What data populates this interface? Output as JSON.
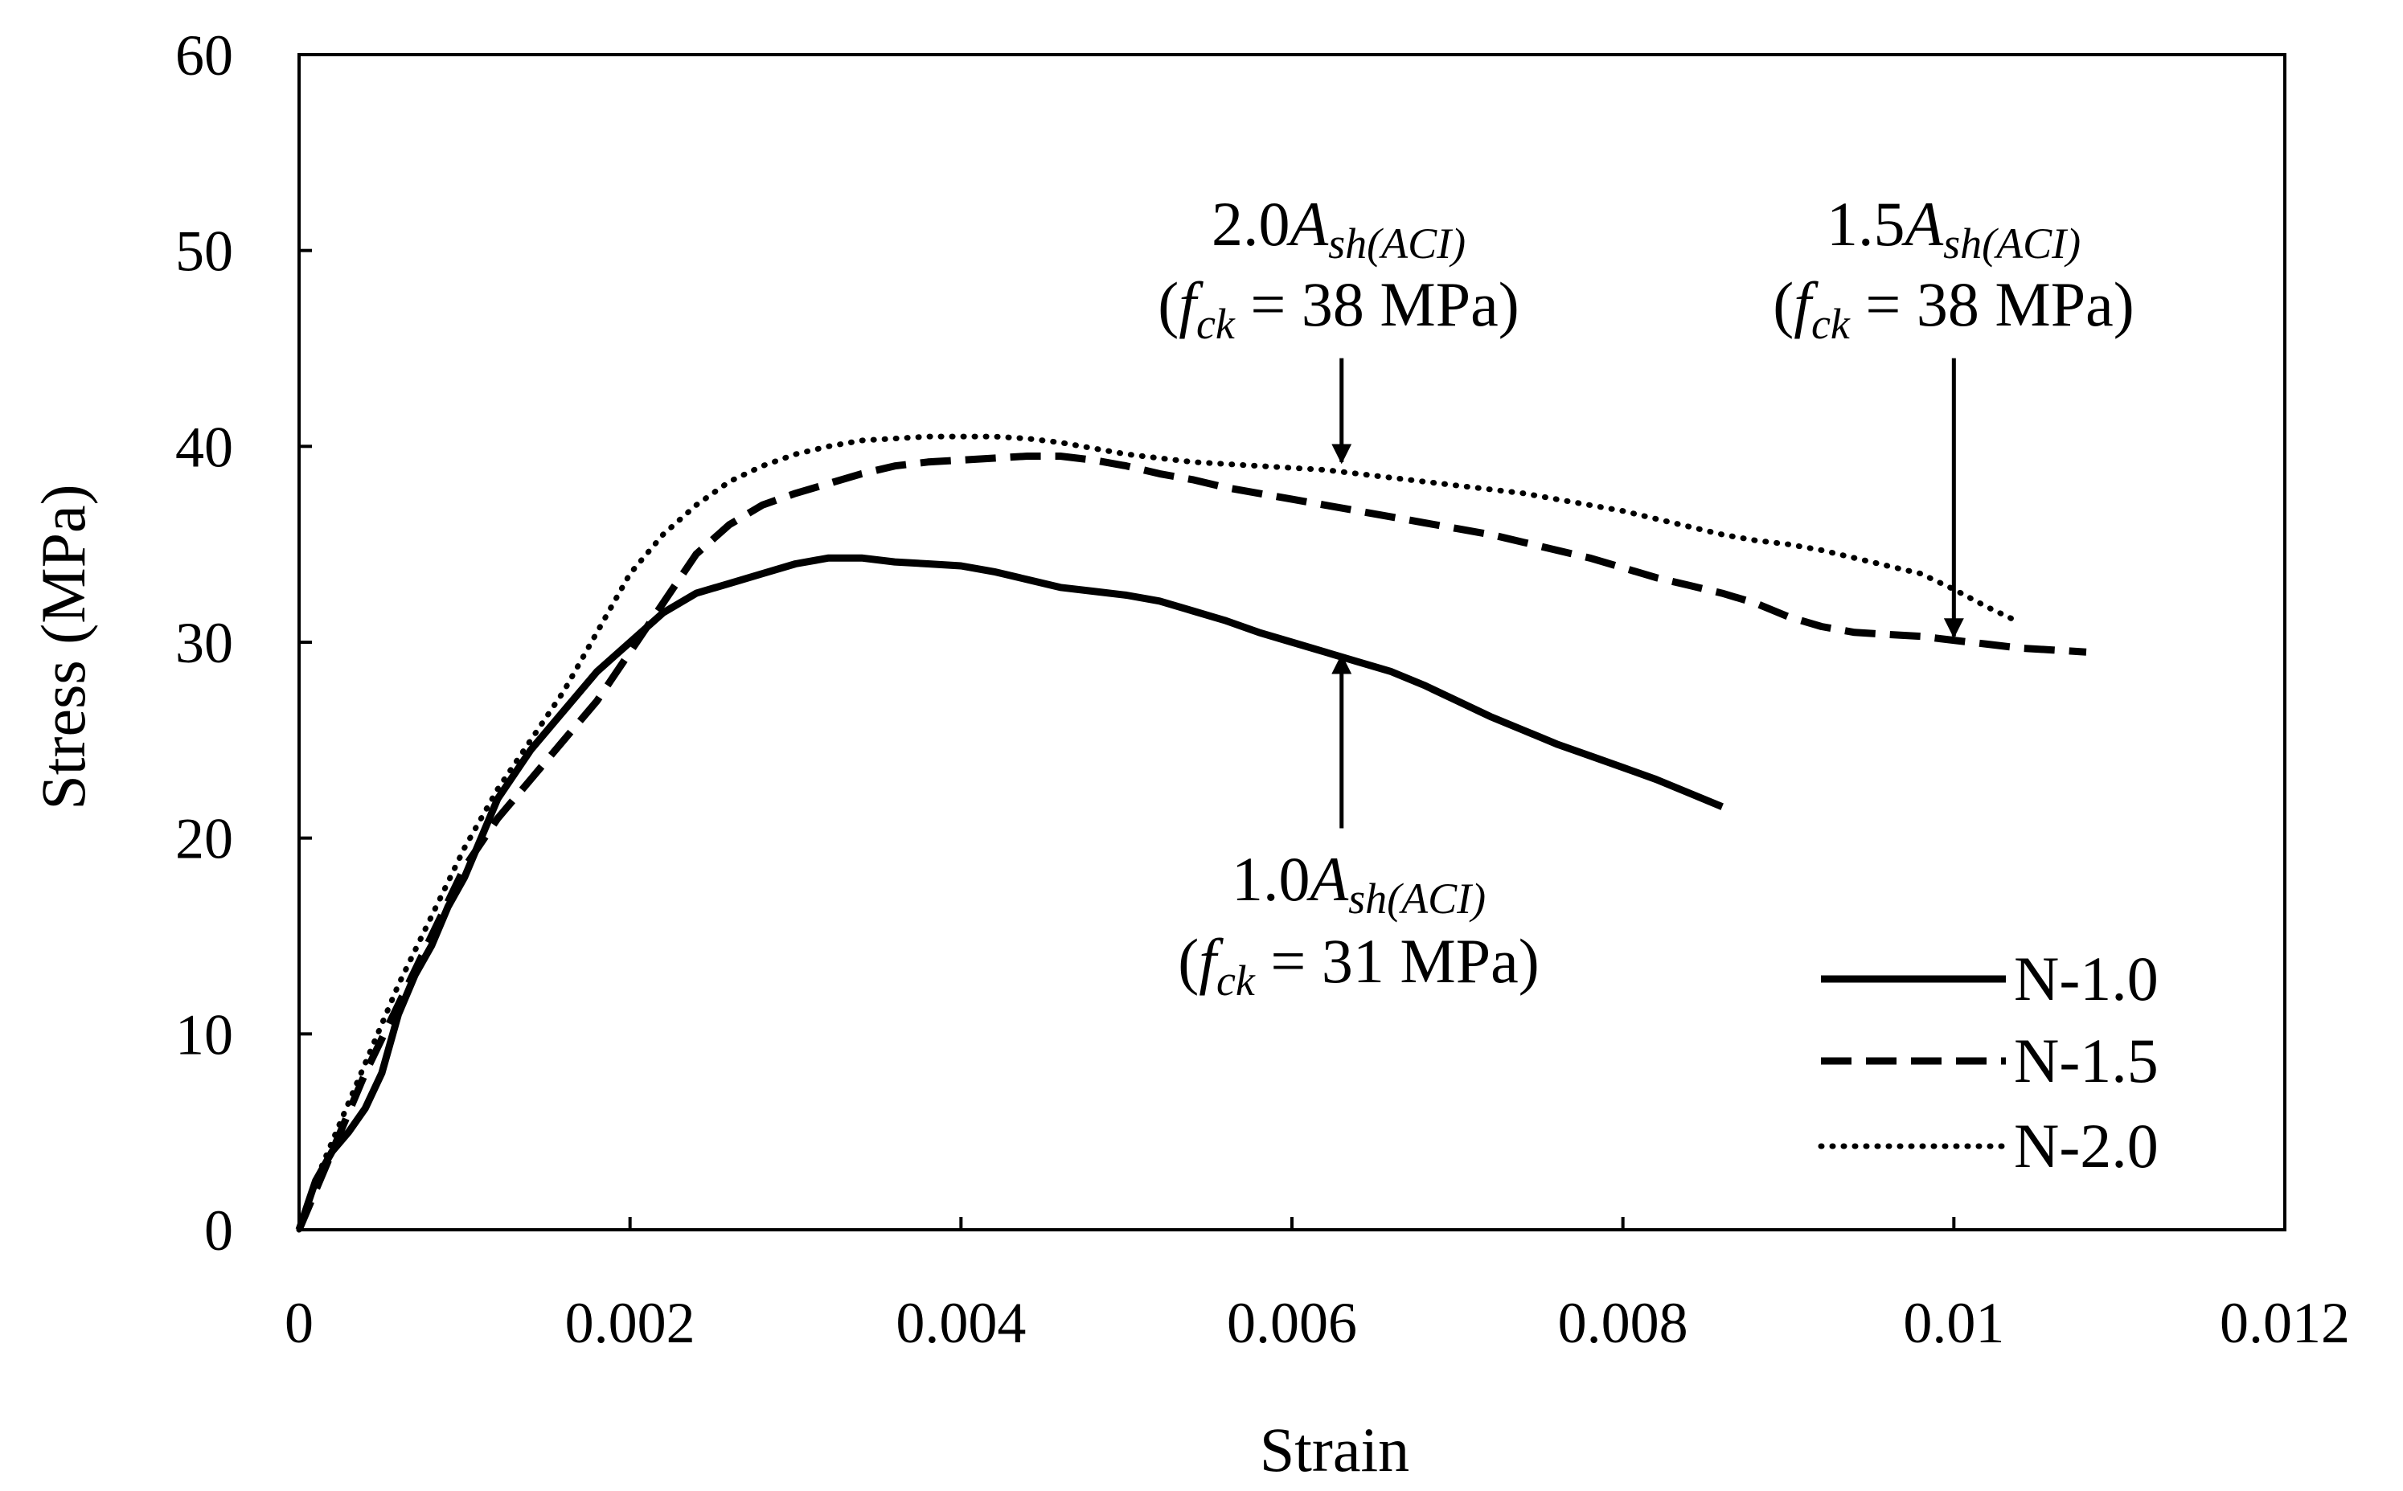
{
  "chart_data": {
    "type": "line",
    "title": "",
    "xlabel": "Strain",
    "ylabel": "Stress (MPa)",
    "xlim": [
      0,
      0.012
    ],
    "ylim": [
      0,
      60
    ],
    "x_ticks": [
      "0",
      "0.002",
      "0.004",
      "0.006",
      "0.008",
      "0.01",
      "0.012"
    ],
    "y_ticks": [
      "0",
      "10",
      "20",
      "30",
      "40",
      "50",
      "60"
    ],
    "legend_position": "bottom-right",
    "grid": false,
    "series": [
      {
        "name": "N-1.0",
        "style": "solid",
        "points": [
          [
            0,
            0
          ],
          [
            0.0001,
            2.5
          ],
          [
            0.0002,
            4
          ],
          [
            0.0003,
            5
          ],
          [
            0.0004,
            6.2
          ],
          [
            0.0005,
            8
          ],
          [
            0.0006,
            11
          ],
          [
            0.0007,
            13
          ],
          [
            0.0008,
            14.5
          ],
          [
            0.0009,
            16.5
          ],
          [
            0.001,
            18
          ],
          [
            0.0011,
            20
          ],
          [
            0.0012,
            22
          ],
          [
            0.0014,
            24.5
          ],
          [
            0.0016,
            26.5
          ],
          [
            0.0018,
            28.5
          ],
          [
            0.002,
            30
          ],
          [
            0.0022,
            31.5
          ],
          [
            0.0024,
            32.5
          ],
          [
            0.0026,
            33
          ],
          [
            0.0028,
            33.5
          ],
          [
            0.003,
            34
          ],
          [
            0.0032,
            34.3
          ],
          [
            0.0034,
            34.3
          ],
          [
            0.0036,
            34.1
          ],
          [
            0.0038,
            34
          ],
          [
            0.004,
            33.9
          ],
          [
            0.0042,
            33.6
          ],
          [
            0.0044,
            33.2
          ],
          [
            0.0046,
            32.8
          ],
          [
            0.0048,
            32.6
          ],
          [
            0.005,
            32.4
          ],
          [
            0.0052,
            32.1
          ],
          [
            0.0054,
            31.6
          ],
          [
            0.0056,
            31.1
          ],
          [
            0.0058,
            30.5
          ],
          [
            0.006,
            30
          ],
          [
            0.0062,
            29.5
          ],
          [
            0.0064,
            29
          ],
          [
            0.0066,
            28.5
          ],
          [
            0.0068,
            27.8
          ],
          [
            0.007,
            27
          ],
          [
            0.0072,
            26.2
          ],
          [
            0.0074,
            25.5
          ],
          [
            0.0076,
            24.8
          ],
          [
            0.0078,
            24.2
          ],
          [
            0.008,
            23.6
          ],
          [
            0.0082,
            23
          ],
          [
            0.0084,
            22.3
          ],
          [
            0.0086,
            21.6
          ]
        ]
      },
      {
        "name": "N-1.5",
        "style": "dashed",
        "points": [
          [
            0,
            0
          ],
          [
            0.0001,
            2
          ],
          [
            0.0002,
            4
          ],
          [
            0.0003,
            6
          ],
          [
            0.0004,
            8
          ],
          [
            0.0006,
            11.5
          ],
          [
            0.0008,
            15
          ],
          [
            0.001,
            18.5
          ],
          [
            0.0012,
            21
          ],
          [
            0.0014,
            23
          ],
          [
            0.0016,
            25
          ],
          [
            0.0018,
            27
          ],
          [
            0.002,
            29.5
          ],
          [
            0.0022,
            32
          ],
          [
            0.0024,
            34.5
          ],
          [
            0.0026,
            36
          ],
          [
            0.0028,
            37
          ],
          [
            0.003,
            37.6
          ],
          [
            0.0032,
            38.1
          ],
          [
            0.0034,
            38.6
          ],
          [
            0.0036,
            39
          ],
          [
            0.0038,
            39.2
          ],
          [
            0.004,
            39.3
          ],
          [
            0.0042,
            39.4
          ],
          [
            0.0044,
            39.5
          ],
          [
            0.0046,
            39.5
          ],
          [
            0.0048,
            39.3
          ],
          [
            0.005,
            39
          ],
          [
            0.0052,
            38.6
          ],
          [
            0.0054,
            38.3
          ],
          [
            0.0056,
            37.9
          ],
          [
            0.0058,
            37.6
          ],
          [
            0.006,
            37.3
          ],
          [
            0.0062,
            37
          ],
          [
            0.0064,
            36.7
          ],
          [
            0.0066,
            36.4
          ],
          [
            0.0068,
            36.1
          ],
          [
            0.007,
            35.8
          ],
          [
            0.0072,
            35.5
          ],
          [
            0.0074,
            35.1
          ],
          [
            0.0076,
            34.7
          ],
          [
            0.0078,
            34.3
          ],
          [
            0.008,
            33.8
          ],
          [
            0.0082,
            33.3
          ],
          [
            0.0084,
            32.9
          ],
          [
            0.0086,
            32.5
          ],
          [
            0.0088,
            32
          ],
          [
            0.009,
            31.3
          ],
          [
            0.0092,
            30.8
          ],
          [
            0.0094,
            30.5
          ],
          [
            0.0096,
            30.4
          ],
          [
            0.0098,
            30.3
          ],
          [
            0.01,
            30.1
          ],
          [
            0.0102,
            29.9
          ],
          [
            0.0104,
            29.7
          ],
          [
            0.0106,
            29.6
          ],
          [
            0.0108,
            29.5
          ]
        ]
      },
      {
        "name": "N-2.0",
        "style": "dotted",
        "points": [
          [
            0,
            0
          ],
          [
            0.0001,
            2.5
          ],
          [
            0.0002,
            4.5
          ],
          [
            0.0004,
            8.5
          ],
          [
            0.0006,
            12.5
          ],
          [
            0.0008,
            16
          ],
          [
            0.001,
            19.5
          ],
          [
            0.0012,
            22.5
          ],
          [
            0.0014,
            25
          ],
          [
            0.0016,
            27.5
          ],
          [
            0.0018,
            30.5
          ],
          [
            0.002,
            33.5
          ],
          [
            0.0022,
            35.5
          ],
          [
            0.0024,
            37
          ],
          [
            0.0026,
            38.2
          ],
          [
            0.0028,
            39
          ],
          [
            0.003,
            39.6
          ],
          [
            0.0032,
            40
          ],
          [
            0.0034,
            40.3
          ],
          [
            0.0036,
            40.4
          ],
          [
            0.0038,
            40.5
          ],
          [
            0.004,
            40.5
          ],
          [
            0.0042,
            40.5
          ],
          [
            0.0044,
            40.4
          ],
          [
            0.0046,
            40.2
          ],
          [
            0.0048,
            39.9
          ],
          [
            0.005,
            39.6
          ],
          [
            0.0052,
            39.4
          ],
          [
            0.0054,
            39.2
          ],
          [
            0.0056,
            39.1
          ],
          [
            0.0058,
            39
          ],
          [
            0.006,
            38.9
          ],
          [
            0.0062,
            38.8
          ],
          [
            0.0064,
            38.6
          ],
          [
            0.0066,
            38.4
          ],
          [
            0.0068,
            38.2
          ],
          [
            0.007,
            38
          ],
          [
            0.0072,
            37.8
          ],
          [
            0.0074,
            37.6
          ],
          [
            0.0076,
            37.3
          ],
          [
            0.0078,
            37
          ],
          [
            0.008,
            36.7
          ],
          [
            0.0082,
            36.3
          ],
          [
            0.0084,
            35.9
          ],
          [
            0.0086,
            35.5
          ],
          [
            0.0088,
            35.2
          ],
          [
            0.009,
            35
          ],
          [
            0.0092,
            34.7
          ],
          [
            0.0094,
            34.3
          ],
          [
            0.0096,
            33.9
          ],
          [
            0.0098,
            33.5
          ],
          [
            0.01,
            32.7
          ],
          [
            0.0102,
            31.8
          ],
          [
            0.0104,
            31
          ]
        ]
      }
    ],
    "annotations": [
      {
        "coef": "2.0",
        "symbol": "A",
        "subscript": "sh(ACI)",
        "fc_open": "(",
        "fc_symbol": "f",
        "fc_sub": "ck",
        "fc_value": " = 38 MPa)",
        "arrow_from": [
          0.0063,
          44.5
        ],
        "arrow_to": [
          0.0063,
          39.2
        ]
      },
      {
        "coef": "1.5",
        "symbol": "A",
        "subscript": "sh(ACI)",
        "fc_open": "(",
        "fc_symbol": "f",
        "fc_sub": "ck",
        "fc_value": " = 38 MPa)",
        "arrow_from": [
          0.01,
          44.5
        ],
        "arrow_to": [
          0.01,
          30.3
        ]
      },
      {
        "coef": "1.0",
        "symbol": "A",
        "subscript": "sh(ACI)",
        "fc_open": "(",
        "fc_symbol": "f",
        "fc_sub": "ck",
        "fc_value": " = 31 MPa)",
        "arrow_from": [
          0.0063,
          20.5
        ],
        "arrow_to": [
          0.0063,
          29.3
        ]
      }
    ]
  }
}
